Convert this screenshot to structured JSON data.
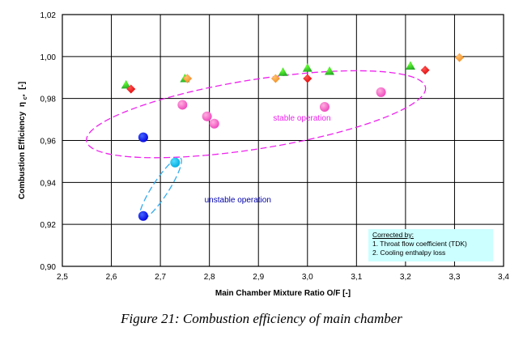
{
  "chart_data": {
    "type": "scatter",
    "xlabel": "Main Chamber Mixture Ratio O/F  [-]",
    "ylabel": "Combustion Efficiency",
    "ylabel_symbol": "η",
    "ylabel_subscript": "c*",
    "ylabel_unit": "[-]",
    "xlim": [
      2.5,
      3.4
    ],
    "ylim": [
      0.9,
      1.02
    ],
    "xticks": [
      "2,5",
      "2,6",
      "2,7",
      "2,8",
      "2,9",
      "3,0",
      "3,1",
      "3,2",
      "3,3",
      "3,4"
    ],
    "yticks": [
      "0,90",
      "0,92",
      "0,94",
      "0,96",
      "0,98",
      "1,00",
      "1,02"
    ],
    "grid": true,
    "series": [
      {
        "marker": "triangle",
        "color": "#22aa22",
        "highlight": "#66ff33",
        "points": [
          [
            2.63,
            0.9865
          ],
          [
            2.75,
            0.9895
          ],
          [
            2.95,
            0.9925
          ],
          [
            3.0,
            0.9945
          ],
          [
            3.045,
            0.993
          ],
          [
            3.21,
            0.9955
          ]
        ]
      },
      {
        "marker": "diamond",
        "color": "#e00000",
        "highlight": "#ff5555",
        "points": [
          [
            2.64,
            0.9845
          ],
          [
            2.755,
            0.9895
          ],
          [
            3.0,
            0.9895
          ],
          [
            3.24,
            0.9935
          ]
        ]
      },
      {
        "marker": "diamond",
        "color": "#f08a1a",
        "highlight": "#ffc070",
        "points": [
          [
            2.755,
            0.9895
          ],
          [
            2.935,
            0.9895
          ],
          [
            3.31,
            0.9995
          ]
        ]
      },
      {
        "marker": "circle",
        "color": "#ee44bb",
        "highlight": "#ffb0e0",
        "points": [
          [
            2.745,
            0.977
          ],
          [
            2.795,
            0.9715
          ],
          [
            2.81,
            0.968
          ],
          [
            3.035,
            0.976
          ],
          [
            3.15,
            0.983
          ]
        ]
      },
      {
        "marker": "circle",
        "color": "#0000dd",
        "highlight": "#4466ff",
        "points": [
          [
            2.665,
            0.9615
          ],
          [
            2.665,
            0.924
          ]
        ]
      },
      {
        "marker": "circle",
        "color": "#00aadd",
        "highlight": "#55ddff",
        "points": [
          [
            2.73,
            0.9495
          ]
        ]
      }
    ],
    "annotations": [
      {
        "text": "stable operation",
        "color": "#ee22ee",
        "x": 2.93,
        "y": 0.9695
      },
      {
        "text": "unstable operation",
        "color": "#0000aa",
        "x": 2.79,
        "y": 0.9305
      }
    ],
    "regions": [
      {
        "shape": "ellipse",
        "color": "#ee22ee",
        "label": "stable operation",
        "center": [
          2.895,
          0.9725
        ],
        "semi_x": 0.35,
        "semi_y": 0.0165,
        "tilt_deg": -9
      },
      {
        "shape": "ellipse",
        "color": "#33aaee",
        "label": "unstable operation",
        "center": [
          2.7,
          0.937
        ],
        "semi_x": 0.0165,
        "semi_y": 0.0175,
        "tilt_deg": 33
      }
    ]
  },
  "note": {
    "header": "Corrected by:",
    "lines": [
      "1.  Throat flow coefficient  (TDK)",
      "2.  Cooling enthalpy loss"
    ]
  },
  "caption": "Figure  21: Combustion efficiency of main chamber"
}
